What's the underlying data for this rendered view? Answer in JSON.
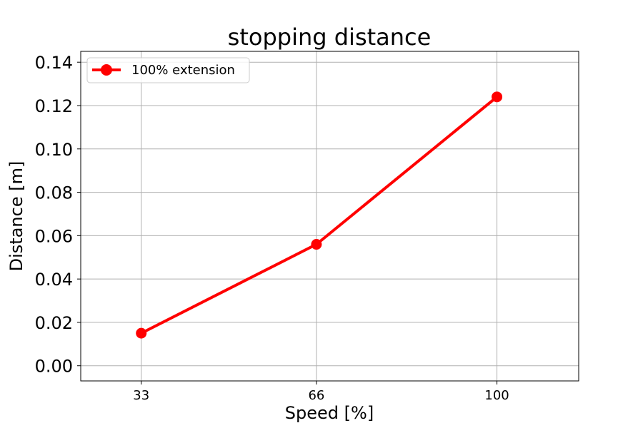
{
  "chart_data": {
    "type": "line",
    "title": "stopping distance",
    "xlabel": "Speed [%]",
    "ylabel": "Distance [m]",
    "categories": [
      "33",
      "66",
      "100"
    ],
    "x": [
      33,
      66,
      100
    ],
    "xlim": [
      21.6,
      115.4
    ],
    "ylim": [
      -0.007,
      0.145
    ],
    "yticks": [
      0.0,
      0.02,
      0.04,
      0.06,
      0.08,
      0.1,
      0.12,
      0.14
    ],
    "ytick_labels": [
      "0.00",
      "0.02",
      "0.04",
      "0.06",
      "0.08",
      "0.10",
      "0.12",
      "0.14"
    ],
    "grid": true,
    "legend": "upper-left",
    "series": [
      {
        "name": "100% extension",
        "values": [
          0.015,
          0.056,
          0.124
        ],
        "color": "#ff0000",
        "marker": "circle"
      }
    ]
  }
}
